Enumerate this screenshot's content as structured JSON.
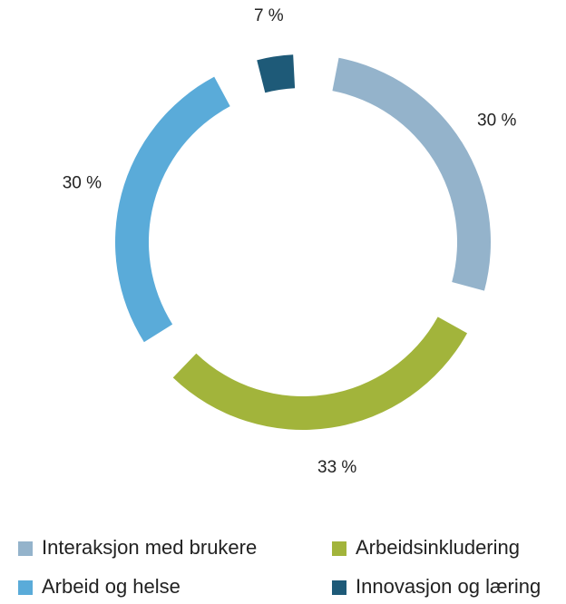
{
  "chart_data": {
    "type": "donut",
    "categories": [
      "Interaksjon med brukere",
      "Arbeidsinkludering",
      "Arbeid og helse",
      "Innovasjon og læring"
    ],
    "values": [
      30,
      33,
      30,
      7
    ],
    "value_labels": [
      "30 %",
      "33 %",
      "30 %",
      "7 %"
    ],
    "colors": [
      "#94b3cb",
      "#a2b43b",
      "#5aabd9",
      "#1e5a78"
    ],
    "legend": "bottom"
  }
}
